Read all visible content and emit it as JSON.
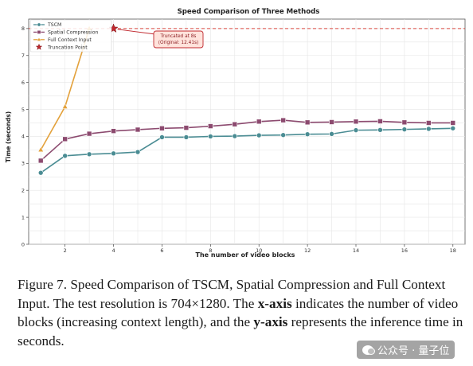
{
  "chart_data": {
    "type": "line",
    "title": "Speed Comparison of Three Methods",
    "xlabel": "The number of video blocks",
    "ylabel": "Time (seconds)",
    "xlim": [
      0.5,
      18.5
    ],
    "ylim": [
      0,
      8.35
    ],
    "xticks": [
      2,
      4,
      6,
      8,
      10,
      12,
      14,
      16,
      18
    ],
    "yticks": [
      0,
      1,
      2,
      3,
      4,
      5,
      6,
      7,
      8
    ],
    "grid": true,
    "legend_position": "top-left",
    "series": [
      {
        "name": "TSCM",
        "color": "#4a8c93",
        "marker": "circle",
        "x": [
          1,
          2,
          3,
          4,
          5,
          6,
          7,
          8,
          9,
          10,
          11,
          12,
          13,
          14,
          15,
          16,
          17,
          18
        ],
        "y": [
          2.65,
          3.28,
          3.34,
          3.37,
          3.42,
          3.97,
          3.97,
          4.0,
          4.01,
          4.04,
          4.05,
          4.08,
          4.09,
          4.23,
          4.24,
          4.26,
          4.28,
          4.3
        ]
      },
      {
        "name": "Spatial Compression",
        "color": "#8c4a6f",
        "marker": "square",
        "x": [
          1,
          2,
          3,
          4,
          5,
          6,
          7,
          8,
          9,
          10,
          11,
          12,
          13,
          14,
          15,
          16,
          17,
          18
        ],
        "y": [
          3.1,
          3.9,
          4.1,
          4.2,
          4.25,
          4.3,
          4.32,
          4.38,
          4.45,
          4.55,
          4.6,
          4.52,
          4.53,
          4.55,
          4.56,
          4.52,
          4.5,
          4.5
        ]
      },
      {
        "name": "Full Context Input",
        "color": "#e3a13b",
        "marker": "triangle",
        "x": [
          1,
          2,
          3
        ],
        "y": [
          3.5,
          5.1,
          8.0
        ]
      },
      {
        "name": "Truncation Point",
        "color": "#c0282e",
        "marker": "star",
        "x": [
          4
        ],
        "y": [
          8.0
        ]
      }
    ],
    "reference_line": {
      "y": 8.0,
      "color": "#d9463e",
      "style": "dashed"
    },
    "annotation": {
      "lines": [
        "Truncated at 8s",
        "(Original: 12.41s)"
      ],
      "point": {
        "x": 4,
        "y": 8.0
      },
      "box_color": "#ffe3dc",
      "border_color": "#c0282e"
    }
  },
  "caption": {
    "part1": "Figure 7.  Speed Comparison of TSCM, Spatial Compression and Full Context Input.  The test resolution is 704×1280.  The ",
    "xaxis_label": "x-axis",
    "part2": " indicates the number of video blocks (increasing context length), and the ",
    "yaxis_label": "y-axis",
    "part3": " represents the inference time in seconds."
  },
  "watermark": {
    "text": "公众号 · 量子位"
  }
}
